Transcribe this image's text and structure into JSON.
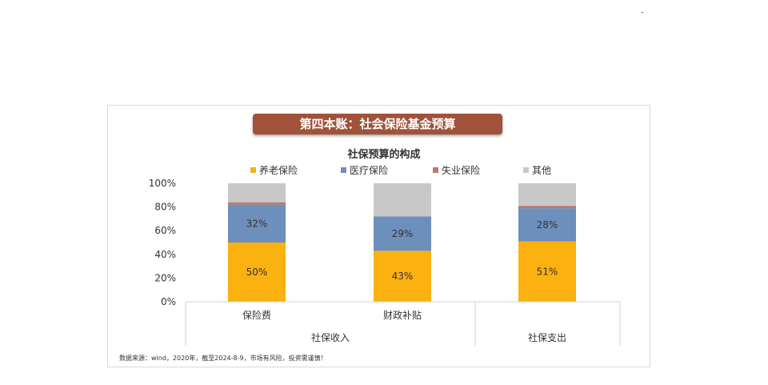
{
  "banner_title": "第四本账：社会保险基金预算",
  "chart_data": {
    "type": "bar",
    "stacked": true,
    "title": "社保预算的构成",
    "categories": [
      "保险费",
      "财政补贴",
      ""
    ],
    "groups": [
      {
        "label": "社保收入",
        "categories": [
          "保险费",
          "财政补贴"
        ]
      },
      {
        "label": "社保支出",
        "categories": [
          ""
        ]
      }
    ],
    "series": [
      {
        "name": "养老保险",
        "color": "#fbb110",
        "values": [
          50,
          43,
          51
        ],
        "labels": [
          "50%",
          "43%",
          "51%"
        ]
      },
      {
        "name": "医疗保险",
        "color": "#6d8fbb",
        "values": [
          32,
          29,
          28
        ],
        "labels": [
          "32%",
          "29%",
          "28%"
        ]
      },
      {
        "name": "失业保险",
        "color": "#c0786c",
        "values": [
          2,
          0,
          2
        ],
        "labels": [
          "",
          "",
          ""
        ]
      },
      {
        "name": "其他",
        "color": "#c8c8c8",
        "values": [
          16,
          28,
          19
        ],
        "labels": [
          "",
          "",
          ""
        ]
      }
    ],
    "y_ticks": [
      "0%",
      "20%",
      "40%",
      "60%",
      "80%",
      "100%"
    ],
    "ylim": [
      0,
      100
    ],
    "legend_position": "top",
    "grid": false
  },
  "source_note": "数据来源：wind，2020年，截至2024-8-9，市场有风险，投资需谨慎！"
}
